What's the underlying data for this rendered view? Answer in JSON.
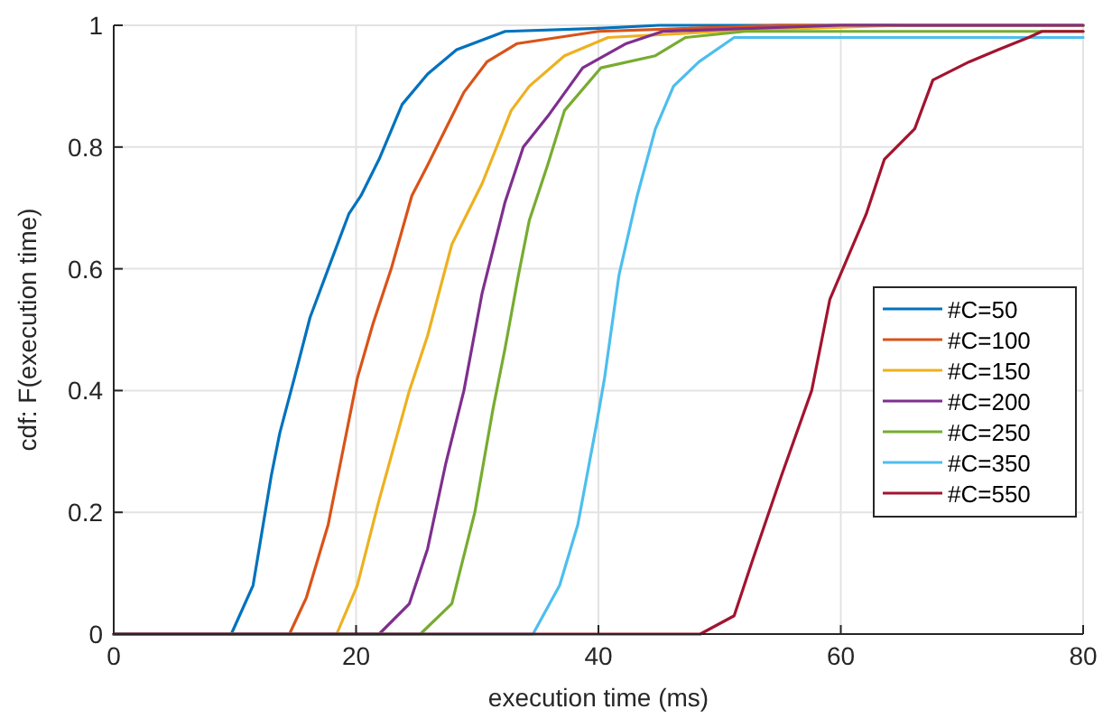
{
  "chart_data": {
    "type": "line",
    "xlabel": "execution time (ms)",
    "ylabel": "cdf: F(execution time)",
    "xlim": [
      0,
      80
    ],
    "ylim": [
      0,
      1
    ],
    "xticks": [
      0,
      20,
      40,
      60,
      80
    ],
    "yticks": [
      0,
      0.2,
      0.4,
      0.6,
      0.8,
      1
    ],
    "grid": true,
    "legend": "right",
    "line_style": "solid",
    "marker": "none",
    "series": [
      {
        "name": "#C=50",
        "color": "#0072bd",
        "x": [
          0,
          9.7,
          11.5,
          13.0,
          13.7,
          14.9,
          16.2,
          17.7,
          19.4,
          20.4,
          21.9,
          23.8,
          25.9,
          28.3,
          32.3,
          40,
          45,
          80
        ],
        "values": [
          0,
          0,
          0.08,
          0.26,
          0.33,
          0.42,
          0.52,
          0.6,
          0.69,
          0.72,
          0.78,
          0.87,
          0.92,
          0.96,
          0.99,
          0.995,
          1,
          1
        ]
      },
      {
        "name": "#C=100",
        "color": "#d95319",
        "x": [
          0,
          14.5,
          15.9,
          17.7,
          18.9,
          20.1,
          21.4,
          22.9,
          24.6,
          25.9,
          27.4,
          28.9,
          30.8,
          33.3,
          40,
          55,
          80
        ],
        "values": [
          0,
          0,
          0.06,
          0.18,
          0.3,
          0.42,
          0.51,
          0.6,
          0.72,
          0.77,
          0.83,
          0.89,
          0.94,
          0.97,
          0.99,
          1,
          1
        ]
      },
      {
        "name": "#C=150",
        "color": "#edb120",
        "x": [
          0,
          18.4,
          20.1,
          21.9,
          24.4,
          25.9,
          27.9,
          30.4,
          32.8,
          34.3,
          37.2,
          40.8,
          50,
          65,
          80
        ],
        "values": [
          0,
          0,
          0.08,
          0.22,
          0.4,
          0.49,
          0.64,
          0.74,
          0.86,
          0.9,
          0.95,
          0.98,
          0.99,
          1,
          1
        ]
      },
      {
        "name": "#C=200",
        "color": "#7e2f8e",
        "x": [
          0,
          21.9,
          24.4,
          25.9,
          27.4,
          28.9,
          30.4,
          32.3,
          33.8,
          35.8,
          38.7,
          42.3,
          45.3,
          60,
          80
        ],
        "values": [
          0,
          0,
          0.05,
          0.14,
          0.28,
          0.4,
          0.56,
          0.71,
          0.8,
          0.85,
          0.93,
          0.97,
          0.99,
          1,
          1
        ]
      },
      {
        "name": "#C=250",
        "color": "#77ac30",
        "x": [
          0,
          25.3,
          27.9,
          29.8,
          31.3,
          32.3,
          33.4,
          34.3,
          35.8,
          37.2,
          40.2,
          44.7,
          47.2,
          52.1,
          80
        ],
        "values": [
          0,
          0,
          0.05,
          0.2,
          0.37,
          0.47,
          0.59,
          0.68,
          0.77,
          0.86,
          0.93,
          0.95,
          0.98,
          0.99,
          0.99
        ]
      },
      {
        "name": "#C=350",
        "color": "#4dbeee",
        "x": [
          0,
          34.6,
          36.8,
          38.3,
          39.8,
          40.5,
          41.7,
          43.2,
          44.7,
          46.2,
          48.3,
          51.2,
          80
        ],
        "values": [
          0,
          0,
          0.08,
          0.18,
          0.34,
          0.42,
          0.59,
          0.72,
          0.83,
          0.9,
          0.94,
          0.98,
          0.98
        ]
      },
      {
        "name": "#C=550",
        "color": "#a2142f",
        "x": [
          0,
          48.4,
          51.2,
          52.7,
          55.1,
          57.6,
          59.1,
          60.6,
          62.1,
          63.6,
          66.1,
          67.6,
          70.6,
          73.0,
          75.5,
          76.6,
          80
        ],
        "values": [
          0,
          0,
          0.03,
          0.12,
          0.26,
          0.4,
          0.55,
          0.62,
          0.69,
          0.78,
          0.83,
          0.91,
          0.94,
          0.96,
          0.98,
          0.99,
          0.99
        ]
      }
    ]
  }
}
